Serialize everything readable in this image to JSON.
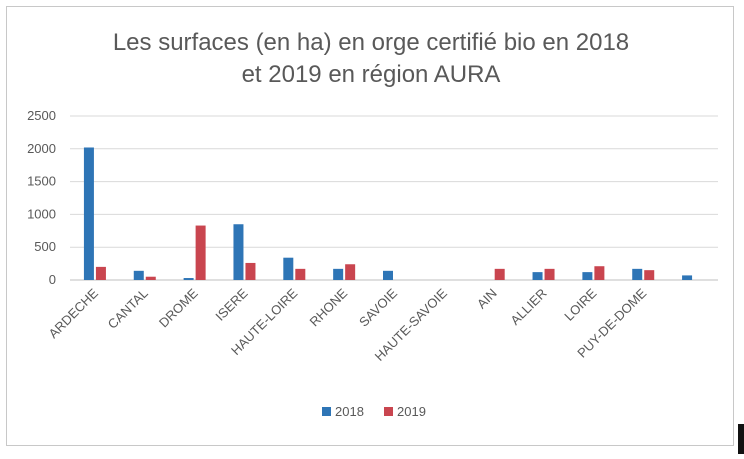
{
  "chart_data": {
    "type": "bar",
    "title_lines": [
      "Les surfaces (en ha) en orge certifié bio en 2018",
      "et 2019 en région AURA"
    ],
    "categories": [
      "ARDECHE",
      "CANTAL",
      "DROME",
      "ISERE",
      "HAUTE-LOIRE",
      "RHONE",
      "SAVOIE",
      "HAUTE-SAVOIE",
      "AIN",
      "ALLIER",
      "LOIRE",
      "PUY-DE-DOME",
      ""
    ],
    "series": [
      {
        "name": "2018",
        "color": "#2e75b6",
        "values": [
          2020,
          140,
          30,
          850,
          340,
          170,
          140,
          0,
          0,
          120,
          120,
          170,
          70
        ]
      },
      {
        "name": "2019",
        "color": "#c9454f",
        "values": [
          200,
          50,
          830,
          260,
          170,
          240,
          0,
          0,
          170,
          170,
          210,
          150,
          0
        ]
      }
    ],
    "ylim": [
      0,
      2500
    ],
    "yticks": [
      "0",
      "500",
      "1000",
      "1500",
      "2000",
      "2500"
    ],
    "grid": true,
    "legend_position": "bottom"
  }
}
